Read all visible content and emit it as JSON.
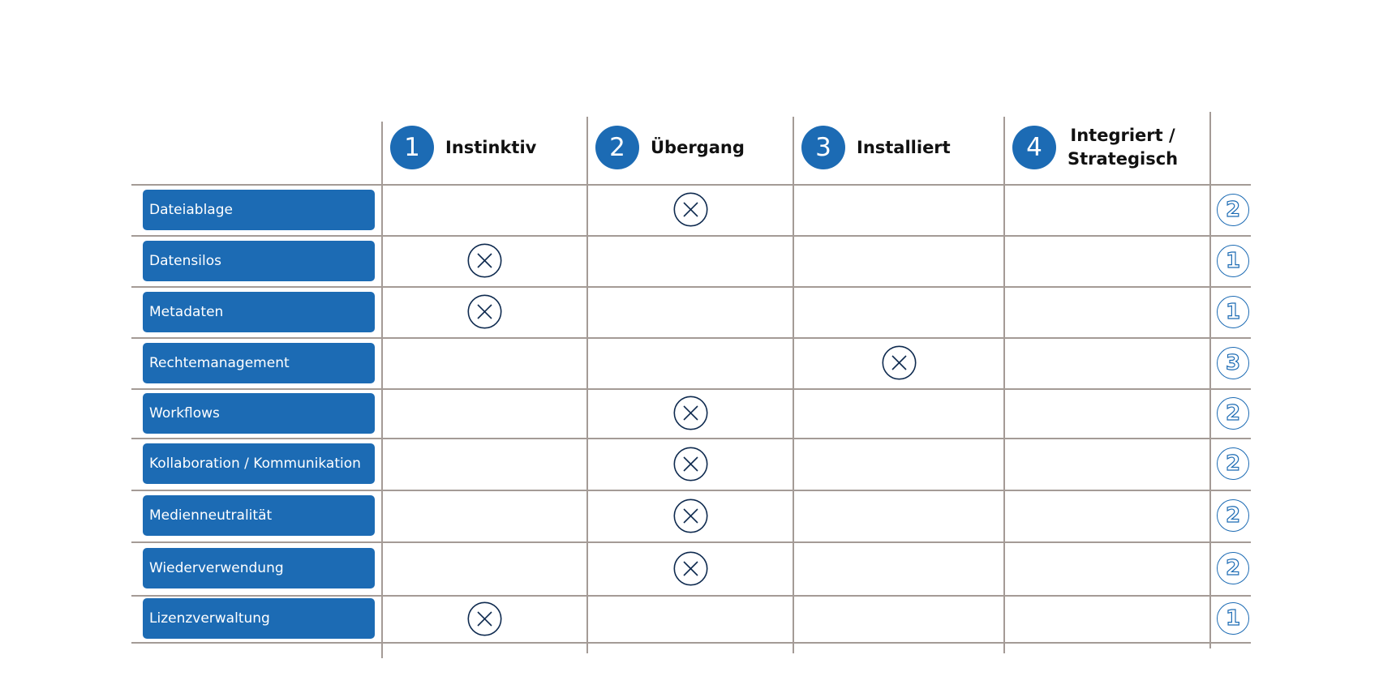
{
  "colors": {
    "accent": "#1c6bb4",
    "mark": "#0e2a4f",
    "grid": "#a49b96"
  },
  "stages": [
    {
      "num": "1",
      "label": "Instinktiv"
    },
    {
      "num": "2",
      "label": "Übergang"
    },
    {
      "num": "3",
      "label": "Installiert"
    },
    {
      "num": "4",
      "label": "Integriert / Strategisch"
    }
  ],
  "rows": [
    {
      "label": "Dateiablage",
      "stage": 2,
      "score": "2"
    },
    {
      "label": "Datensilos",
      "stage": 1,
      "score": "1"
    },
    {
      "label": "Metadaten",
      "stage": 1,
      "score": "1"
    },
    {
      "label": "Rechtemanagement",
      "stage": 3,
      "score": "3"
    },
    {
      "label": "Workflows",
      "stage": 2,
      "score": "2"
    },
    {
      "label": "Kollaboration / Kommunikation",
      "stage": 2,
      "score": "2"
    },
    {
      "label": "Medienneutralität",
      "stage": 2,
      "score": "2"
    },
    {
      "label": "Wiederverwendung",
      "stage": 2,
      "score": "2"
    },
    {
      "label": "Lizenzverwaltung",
      "stage": 1,
      "score": "1"
    }
  ],
  "mark_icon": "circled-x-icon"
}
